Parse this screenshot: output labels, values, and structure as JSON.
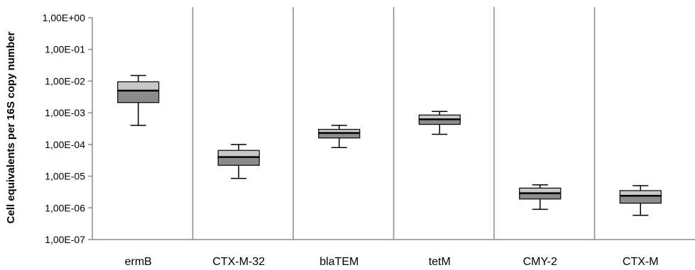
{
  "chart_data": {
    "type": "box",
    "ylabel": "Cell equivalents per 16S copy number",
    "y_scale": "log10",
    "ylim": [
      1e-07,
      1
    ],
    "y_ticks": [
      1,
      0.1,
      0.01,
      0.001,
      0.0001,
      1e-05,
      1e-06,
      1e-07
    ],
    "y_tick_labels": [
      "1,00E+00",
      "1,00E-01",
      "1,00E-02",
      "1,00E-03",
      "1,00E-04",
      "1,00E-05",
      "1,00E-06",
      "1,00E-07"
    ],
    "categories": [
      "ermB",
      "CTX-M-32",
      "blaTEM",
      "tetM",
      "CMY-2",
      "CTX-M"
    ],
    "boxes": [
      {
        "category": "ermB",
        "min": 0.0004,
        "q1": 0.0021,
        "median": 0.005,
        "q3": 0.0095,
        "max": 0.015
      },
      {
        "category": "CTX-M-32",
        "min": 8.5e-06,
        "q1": 2.2e-05,
        "median": 4e-05,
        "q3": 6.5e-05,
        "max": 0.0001
      },
      {
        "category": "blaTEM",
        "min": 8e-05,
        "q1": 0.00016,
        "median": 0.00023,
        "q3": 0.0003,
        "max": 0.0004
      },
      {
        "category": "tetM",
        "min": 0.00021,
        "q1": 0.00043,
        "median": 0.00062,
        "q3": 0.00085,
        "max": 0.0011
      },
      {
        "category": "CMY-2",
        "min": 9e-07,
        "q1": 1.9e-06,
        "median": 2.9e-06,
        "q3": 4.2e-06,
        "max": 5.3e-06
      },
      {
        "category": "CTX-M",
        "min": 5.8e-07,
        "q1": 1.4e-06,
        "median": 2.4e-06,
        "q3": 3.5e-06,
        "max": 5e-06
      }
    ],
    "grid": false,
    "colors": {
      "lower_box": "#8c8c8c",
      "upper_box": "#c8c8c8",
      "median": "#000000",
      "separator": "#8c8c8c",
      "axis": "#8c8c8c"
    }
  }
}
